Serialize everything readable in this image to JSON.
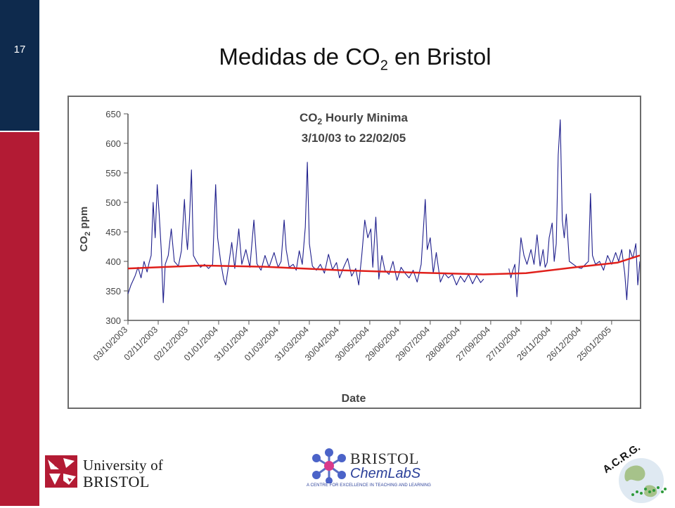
{
  "slide": {
    "number": "17",
    "title_prefix": "Medidas de CO",
    "title_sub": "2",
    "title_suffix": " en Bristol"
  },
  "colors": {
    "sidebar_top": "#0e2a4d",
    "sidebar_bottom": "#b31b34",
    "series": "#1f1f8c",
    "trend": "#e0201b"
  },
  "chart_data": {
    "type": "line",
    "title_line1_prefix": "CO",
    "title_line1_sub": "2",
    "title_line1_suffix": " Hourly Minima",
    "title_line2": "3/10/03 to 22/02/05",
    "xlabel": "Date",
    "ylabel_prefix": "CO",
    "ylabel_sub": "2",
    "ylabel_suffix": " ppm",
    "ylim": [
      300,
      650
    ],
    "yticks": [
      300,
      350,
      400,
      450,
      500,
      550,
      600,
      650
    ],
    "x_tick_labels": [
      "03/10/2003",
      "02/11/2003",
      "02/12/2003",
      "01/01/2004",
      "31/01/2004",
      "01/03/2004",
      "31/03/2004",
      "30/04/2004",
      "30/05/2004",
      "29/06/2004",
      "29/07/2004",
      "28/08/2004",
      "27/09/2004",
      "27/10/2004",
      "26/11/2004",
      "26/12/2004",
      "25/01/2005"
    ],
    "x_range": [
      "2003-10-03",
      "2005-02-22"
    ],
    "grid": false,
    "legend": "none",
    "series": [
      {
        "values": [
          [
            "2003-10-03",
            345
          ],
          [
            "2003-10-06",
            360
          ],
          [
            "2003-10-10",
            375
          ],
          [
            "2003-10-13",
            390
          ],
          [
            "2003-10-16",
            372
          ],
          [
            "2003-10-19",
            400
          ],
          [
            "2003-10-22",
            382
          ],
          [
            "2003-10-24",
            398
          ],
          [
            "2003-10-26",
            410
          ],
          [
            "2003-10-28",
            500
          ],
          [
            "2003-10-30",
            440
          ],
          [
            "2003-11-01",
            530
          ],
          [
            "2003-11-03",
            480
          ],
          [
            "2003-11-05",
            420
          ],
          [
            "2003-11-07",
            330
          ],
          [
            "2003-11-09",
            395
          ],
          [
            "2003-11-12",
            410
          ],
          [
            "2003-11-15",
            455
          ],
          [
            "2003-11-18",
            400
          ],
          [
            "2003-11-22",
            392
          ],
          [
            "2003-11-25",
            418
          ],
          [
            "2003-11-28",
            505
          ],
          [
            "2003-11-30",
            440
          ],
          [
            "2003-12-01",
            420
          ],
          [
            "2003-12-03",
            470
          ],
          [
            "2003-12-05",
            555
          ],
          [
            "2003-12-07",
            410
          ],
          [
            "2003-12-10",
            400
          ],
          [
            "2003-12-14",
            390
          ],
          [
            "2003-12-18",
            395
          ],
          [
            "2003-12-22",
            388
          ],
          [
            "2003-12-26",
            395
          ],
          [
            "2003-12-29",
            530
          ],
          [
            "2003-12-31",
            440
          ],
          [
            "2004-01-03",
            400
          ],
          [
            "2004-01-06",
            370
          ],
          [
            "2004-01-08",
            360
          ],
          [
            "2004-01-11",
            395
          ],
          [
            "2004-01-14",
            432
          ],
          [
            "2004-01-17",
            388
          ],
          [
            "2004-01-21",
            455
          ],
          [
            "2004-01-24",
            395
          ],
          [
            "2004-01-28",
            420
          ],
          [
            "2004-02-01",
            390
          ],
          [
            "2004-02-05",
            470
          ],
          [
            "2004-02-08",
            396
          ],
          [
            "2004-02-12",
            385
          ],
          [
            "2004-02-16",
            410
          ],
          [
            "2004-02-20",
            390
          ],
          [
            "2004-02-25",
            415
          ],
          [
            "2004-02-29",
            390
          ],
          [
            "2004-03-03",
            400
          ],
          [
            "2004-03-06",
            470
          ],
          [
            "2004-03-08",
            420
          ],
          [
            "2004-03-11",
            390
          ],
          [
            "2004-03-15",
            395
          ],
          [
            "2004-03-18",
            385
          ],
          [
            "2004-03-21",
            418
          ],
          [
            "2004-03-24",
            395
          ],
          [
            "2004-03-27",
            458
          ],
          [
            "2004-03-29",
            568
          ],
          [
            "2004-03-31",
            430
          ],
          [
            "2004-04-03",
            392
          ],
          [
            "2004-04-07",
            385
          ],
          [
            "2004-04-11",
            395
          ],
          [
            "2004-04-15",
            380
          ],
          [
            "2004-04-19",
            412
          ],
          [
            "2004-04-23",
            386
          ],
          [
            "2004-04-27",
            398
          ],
          [
            "2004-04-30",
            372
          ],
          [
            "2004-05-04",
            390
          ],
          [
            "2004-05-08",
            405
          ],
          [
            "2004-05-12",
            375
          ],
          [
            "2004-05-16",
            388
          ],
          [
            "2004-05-19",
            360
          ],
          [
            "2004-05-22",
            410
          ],
          [
            "2004-05-25",
            470
          ],
          [
            "2004-05-28",
            440
          ],
          [
            "2004-05-31",
            455
          ],
          [
            "2004-06-02",
            390
          ],
          [
            "2004-06-05",
            475
          ],
          [
            "2004-06-08",
            370
          ],
          [
            "2004-06-11",
            410
          ],
          [
            "2004-06-14",
            385
          ],
          [
            "2004-06-18",
            378
          ],
          [
            "2004-06-22",
            400
          ],
          [
            "2004-06-26",
            368
          ],
          [
            "2004-06-30",
            390
          ],
          [
            "2004-07-04",
            380
          ],
          [
            "2004-07-08",
            372
          ],
          [
            "2004-07-12",
            385
          ],
          [
            "2004-07-16",
            365
          ],
          [
            "2004-07-20",
            395
          ],
          [
            "2004-07-24",
            505
          ],
          [
            "2004-07-26",
            420
          ],
          [
            "2004-07-29",
            440
          ],
          [
            "2004-08-01",
            380
          ],
          [
            "2004-08-04",
            415
          ],
          [
            "2004-08-08",
            365
          ],
          [
            "2004-08-12",
            380
          ],
          [
            "2004-08-16",
            372
          ],
          [
            "2004-08-20",
            378
          ],
          [
            "2004-08-24",
            360
          ],
          [
            "2004-08-28",
            375
          ],
          [
            "2004-09-01",
            365
          ],
          [
            "2004-09-05",
            378
          ],
          [
            "2004-09-09",
            362
          ],
          [
            "2004-09-13",
            376
          ],
          [
            "2004-09-17",
            364
          ],
          [
            "2004-09-20",
            370
          ]
        ]
      },
      {
        "values": [
          [
            "2004-10-15",
            388
          ],
          [
            "2004-10-17",
            372
          ],
          [
            "2004-10-19",
            385
          ],
          [
            "2004-10-21",
            395
          ],
          [
            "2004-10-23",
            340
          ],
          [
            "2004-10-25",
            390
          ],
          [
            "2004-10-27",
            440
          ],
          [
            "2004-10-30",
            410
          ],
          [
            "2004-11-02",
            395
          ],
          [
            "2004-11-06",
            420
          ],
          [
            "2004-11-09",
            395
          ],
          [
            "2004-11-12",
            445
          ],
          [
            "2004-11-15",
            392
          ],
          [
            "2004-11-18",
            420
          ],
          [
            "2004-11-20",
            390
          ],
          [
            "2004-11-22",
            398
          ],
          [
            "2004-11-24",
            440
          ],
          [
            "2004-11-27",
            465
          ],
          [
            "2004-11-29",
            400
          ],
          [
            "2004-12-01",
            430
          ],
          [
            "2004-12-03",
            580
          ],
          [
            "2004-12-05",
            640
          ],
          [
            "2004-12-07",
            470
          ],
          [
            "2004-12-09",
            440
          ],
          [
            "2004-12-11",
            480
          ],
          [
            "2004-12-14",
            400
          ],
          [
            "2004-12-18",
            395
          ],
          [
            "2004-12-22",
            390
          ],
          [
            "2004-12-26",
            388
          ],
          [
            "2004-12-30",
            395
          ],
          [
            "2005-01-02",
            400
          ],
          [
            "2005-01-04",
            515
          ],
          [
            "2005-01-06",
            410
          ],
          [
            "2005-01-09",
            395
          ],
          [
            "2005-01-13",
            400
          ],
          [
            "2005-01-17",
            385
          ],
          [
            "2005-01-21",
            410
          ],
          [
            "2005-01-25",
            395
          ],
          [
            "2005-01-29",
            415
          ],
          [
            "2005-02-01",
            400
          ],
          [
            "2005-02-04",
            420
          ],
          [
            "2005-02-07",
            380
          ],
          [
            "2005-02-09",
            335
          ],
          [
            "2005-02-12",
            420
          ],
          [
            "2005-02-15",
            405
          ],
          [
            "2005-02-18",
            430
          ],
          [
            "2005-02-20",
            360
          ],
          [
            "2005-02-22",
            400
          ]
        ]
      },
      {
        "values": [
          [
            "2003-10-03",
            388
          ],
          [
            "2003-12-15",
            393
          ],
          [
            "2004-02-15",
            391
          ],
          [
            "2004-05-01",
            385
          ],
          [
            "2004-07-15",
            381
          ],
          [
            "2004-09-20",
            378
          ],
          [
            "2004-11-01",
            380
          ],
          [
            "2004-12-20",
            390
          ],
          [
            "2005-01-31",
            398
          ],
          [
            "2005-02-22",
            410
          ]
        ]
      }
    ]
  },
  "logos": {
    "uob_line1": "University of",
    "uob_line2": "BRISTOL",
    "chem_line1": "BRISTOL",
    "chem_line2": "ChemLabS",
    "chem_tagline": "A CENTRE FOR EXCELLENCE IN TEACHING AND LEARNING",
    "acrg_text": "A.C.R.G."
  }
}
